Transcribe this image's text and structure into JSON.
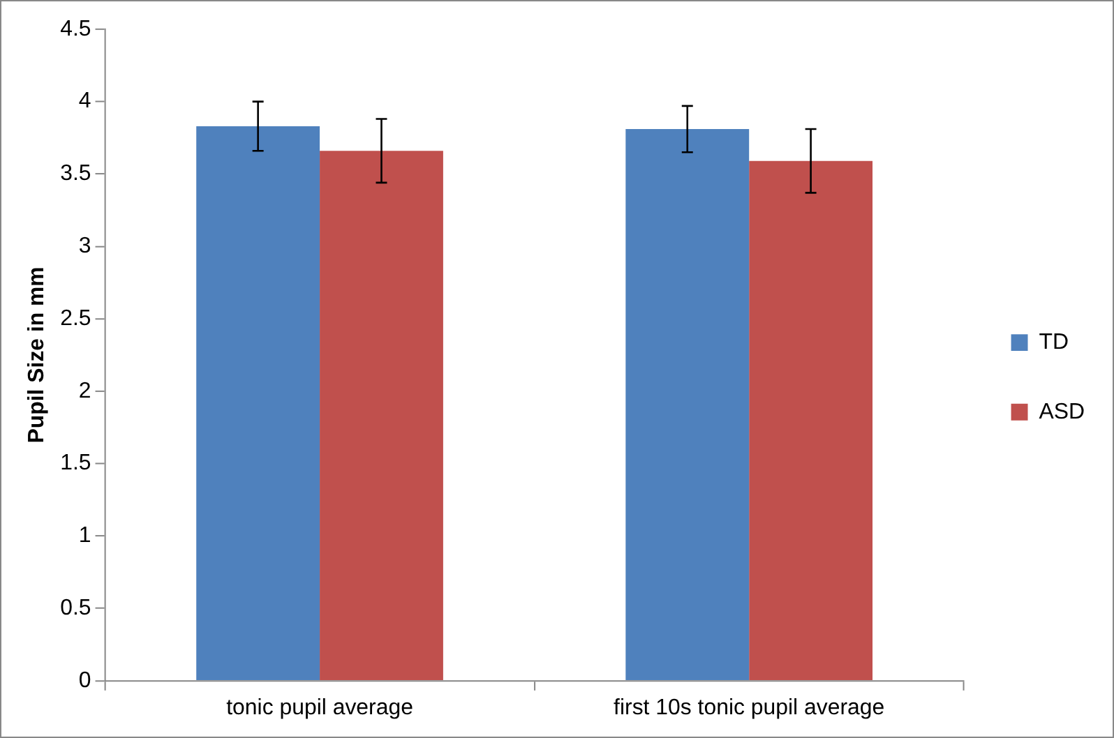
{
  "chart_data": {
    "type": "bar",
    "ylabel": "Pupil Size in mm",
    "categories": [
      "tonic pupil average",
      "first 10s tonic pupil average"
    ],
    "series": [
      {
        "name": "TD",
        "color": "#4f81bd",
        "values": [
          3.83,
          3.81
        ],
        "errors": [
          0.17,
          0.16
        ]
      },
      {
        "name": "ASD",
        "color": "#c0504d",
        "values": [
          3.66,
          3.59
        ],
        "errors": [
          0.22,
          0.22
        ]
      }
    ],
    "ylim": [
      0,
      4.5
    ],
    "yticks": [
      0,
      0.5,
      1,
      1.5,
      2,
      2.5,
      3,
      3.5,
      4,
      4.5
    ],
    "grid": false,
    "legend": "right"
  }
}
